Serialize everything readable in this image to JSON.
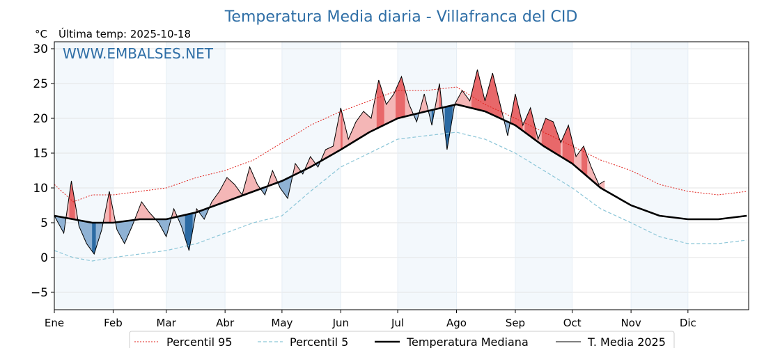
{
  "chart_data": {
    "type": "line",
    "title": "Temperatura Media diaria - Villafranca del CID",
    "unit": "°C",
    "last_update": "Última temp: 2025-10-18",
    "watermark": "WWW.EMBALSES.NET",
    "ylim": [
      -7.5,
      31
    ],
    "yticks": [
      -5,
      0,
      5,
      10,
      15,
      20,
      25,
      30
    ],
    "xlim": [
      0,
      366
    ],
    "months": [
      "Ene",
      "Feb",
      "Mar",
      "Abr",
      "May",
      "Jun",
      "Jul",
      "Ago",
      "Sep",
      "Oct",
      "Nov",
      "Dic"
    ],
    "month_starts": [
      0,
      31,
      59,
      90,
      120,
      151,
      181,
      212,
      243,
      273,
      304,
      334
    ],
    "legend_position": "bottom-center",
    "grid": true,
    "colors": {
      "p95": "#e0201b",
      "p5": "#8cc6d8",
      "median": "#000000",
      "current": "#000000",
      "above_fill": "#f4b6b6",
      "above_fill_strong": "#e8686a",
      "below_fill": "#8fb2d4",
      "below_fill_strong": "#2b6aa3",
      "band_shade": "#f3f8fc",
      "title_color": "#2e6ea6"
    },
    "series": [
      {
        "name": "Percentil 95",
        "style": "dotted-red",
        "x": [
          0,
          10,
          20,
          31,
          45,
          59,
          75,
          90,
          105,
          120,
          135,
          151,
          166,
          181,
          196,
          212,
          227,
          243,
          258,
          273,
          288,
          304,
          319,
          334,
          350,
          365
        ],
        "y": [
          10.5,
          8.0,
          9.0,
          9.0,
          9.5,
          10.0,
          11.5,
          12.5,
          14.0,
          16.5,
          19.0,
          21.0,
          22.5,
          24.0,
          24.0,
          24.5,
          22.0,
          20.0,
          18.0,
          16.0,
          14.0,
          12.5,
          10.5,
          9.5,
          9.0,
          9.5
        ]
      },
      {
        "name": "Percentil 5",
        "style": "dashed-lightblue",
        "x": [
          0,
          10,
          20,
          31,
          45,
          59,
          75,
          90,
          105,
          120,
          135,
          151,
          166,
          181,
          196,
          212,
          227,
          243,
          258,
          273,
          288,
          304,
          319,
          334,
          350,
          365
        ],
        "y": [
          1.0,
          0.0,
          -0.5,
          0.0,
          0.5,
          1.0,
          2.0,
          3.5,
          5.0,
          6.0,
          9.5,
          13.0,
          15.0,
          17.0,
          17.5,
          18.0,
          17.0,
          15.0,
          12.5,
          10.0,
          7.0,
          5.0,
          3.0,
          2.0,
          2.0,
          2.5
        ]
      },
      {
        "name": "Temperatura Mediana",
        "style": "bold-black",
        "x": [
          0,
          10,
          20,
          31,
          45,
          59,
          75,
          90,
          105,
          120,
          135,
          151,
          166,
          181,
          196,
          212,
          227,
          243,
          258,
          273,
          288,
          304,
          319,
          334,
          350,
          365
        ],
        "y": [
          6.0,
          5.5,
          5.0,
          5.0,
          5.5,
          5.5,
          6.5,
          8.0,
          9.5,
          11.0,
          13.0,
          15.5,
          18.0,
          20.0,
          21.0,
          22.0,
          21.0,
          19.0,
          16.0,
          13.5,
          10.0,
          7.5,
          6.0,
          5.5,
          5.5,
          6.0
        ]
      },
      {
        "name": "T. Media 2025",
        "style": "thin-black",
        "x": [
          0,
          5,
          9,
          13,
          17,
          21,
          25,
          29,
          33,
          37,
          41,
          46,
          50,
          55,
          59,
          63,
          67,
          71,
          75,
          79,
          83,
          87,
          91,
          95,
          99,
          103,
          107,
          111,
          115,
          119,
          123,
          127,
          131,
          135,
          139,
          143,
          147,
          151,
          155,
          159,
          163,
          167,
          171,
          175,
          179,
          183,
          187,
          191,
          195,
          199,
          203,
          207,
          211,
          215,
          219,
          223,
          227,
          231,
          235,
          239,
          243,
          247,
          251,
          255,
          259,
          263,
          267,
          271,
          275,
          279,
          283,
          287,
          290
        ],
        "y": [
          6.0,
          3.5,
          11.0,
          4.5,
          2.0,
          0.5,
          4.0,
          9.5,
          4.0,
          2.0,
          4.5,
          8.0,
          6.5,
          5.0,
          3.0,
          7.0,
          4.5,
          1.0,
          7.0,
          5.5,
          8.0,
          9.5,
          11.5,
          10.5,
          9.0,
          13.0,
          10.5,
          9.0,
          12.5,
          10.0,
          8.5,
          13.5,
          12.0,
          14.5,
          13.0,
          15.5,
          16.0,
          21.5,
          17.0,
          19.5,
          21.0,
          20.0,
          25.5,
          22.0,
          23.5,
          26.0,
          22.0,
          19.5,
          23.5,
          19.0,
          25.0,
          15.5,
          22.0,
          24.0,
          22.5,
          27.0,
          22.5,
          26.5,
          22.0,
          17.5,
          23.5,
          19.0,
          21.5,
          17.0,
          20.0,
          19.5,
          16.5,
          19.0,
          14.5,
          16.0,
          13.0,
          10.5,
          11.0
        ]
      }
    ]
  }
}
